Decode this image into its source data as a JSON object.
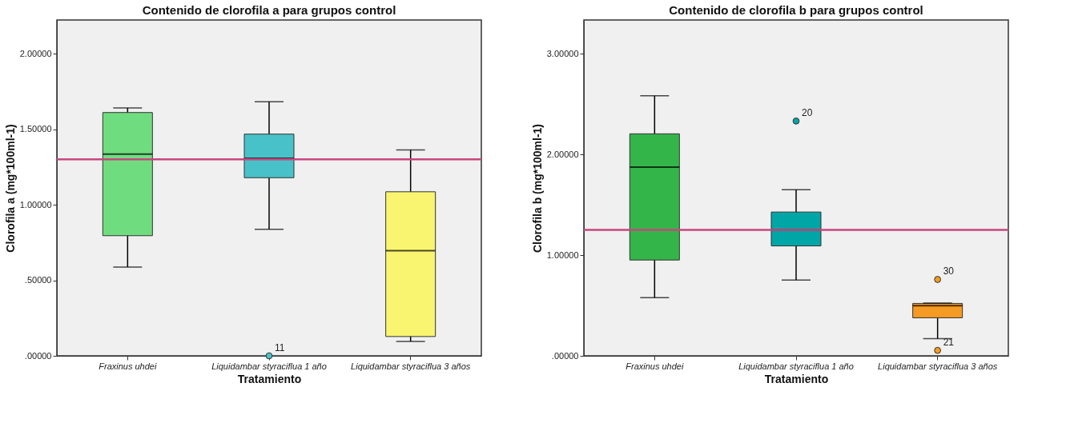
{
  "chart_data": [
    {
      "type": "box",
      "title": "Contenido de clorofila a para grupos control",
      "xlabel": "Tratamiento",
      "ylabel": "Clorofila a (mg*100ml-1)",
      "categories": [
        "Fraxinus uhdei",
        "Liquidambar styraciflua 1 año",
        "Liquidambar styraciflua 3 años"
      ],
      "colors": [
        "#70dc80",
        "#48c2c8",
        "#f9f570"
      ],
      "boxes": [
        {
          "low": 0.588,
          "q1": 0.796,
          "median": 1.336,
          "q3": 1.612,
          "high": 1.642
        },
        {
          "low": 0.839,
          "q1": 1.18,
          "median": 1.308,
          "q3": 1.469,
          "high": 1.683,
          "outliers": [
            0.0
          ]
        },
        {
          "low": 0.095,
          "q1": 0.128,
          "median": 0.696,
          "q3": 1.087,
          "high": 1.364
        }
      ],
      "ylim": [
        0,
        2.225
      ],
      "yticks": [
        {
          "value": 0,
          "label": ".00000"
        },
        {
          "value": 0.5,
          "label": ".50000"
        },
        {
          "value": 1,
          "label": "1.00000"
        },
        {
          "value": 1.5,
          "label": "1.50000"
        },
        {
          "value": 2,
          "label": "2.00000"
        }
      ],
      "ref_lines": [
        {
          "axis": "y",
          "value": 1.302,
          "color": "#c8467f"
        }
      ],
      "annotations": [
        "11"
      ],
      "grid": false,
      "legend": false
    },
    {
      "type": "box",
      "title": "Contenido de clorofila b para grupos control",
      "xlabel": "Tratamiento",
      "ylabel": "Clorofila b (mg*100ml-1)",
      "categories": [
        "Fraxinus uhdei",
        "Liquidambar styraciflua 1 año",
        "Liquidambar styraciflua 3 años"
      ],
      "colors": [
        "#33b54a",
        "#00a6a6",
        "#f59a23"
      ],
      "boxes": [
        {
          "low": 0.578,
          "q1": 0.952,
          "median": 1.876,
          "q3": 2.206,
          "high": 2.584
        },
        {
          "low": 0.752,
          "q1": 1.092,
          "median": 1.251,
          "q3": 1.429,
          "high": 1.651,
          "outliers": [
            2.333
          ]
        },
        {
          "low": 0.171,
          "q1": 0.378,
          "median": 0.498,
          "q3": 0.521,
          "high": 0.524,
          "outliers": [
            0.759,
            0.054
          ]
        }
      ],
      "ylim": [
        0,
        3.337
      ],
      "yticks": [
        {
          "value": 0,
          "label": ".00000"
        },
        {
          "value": 1,
          "label": "1.00000"
        },
        {
          "value": 2,
          "label": "2.00000"
        },
        {
          "value": 3,
          "label": "3.00000"
        }
      ],
      "ref_lines": [
        {
          "axis": "y",
          "value": 1.251,
          "color": "#c8467f"
        }
      ],
      "annotations": [
        "20",
        "30",
        "21"
      ],
      "grid": false,
      "legend": false
    }
  ]
}
